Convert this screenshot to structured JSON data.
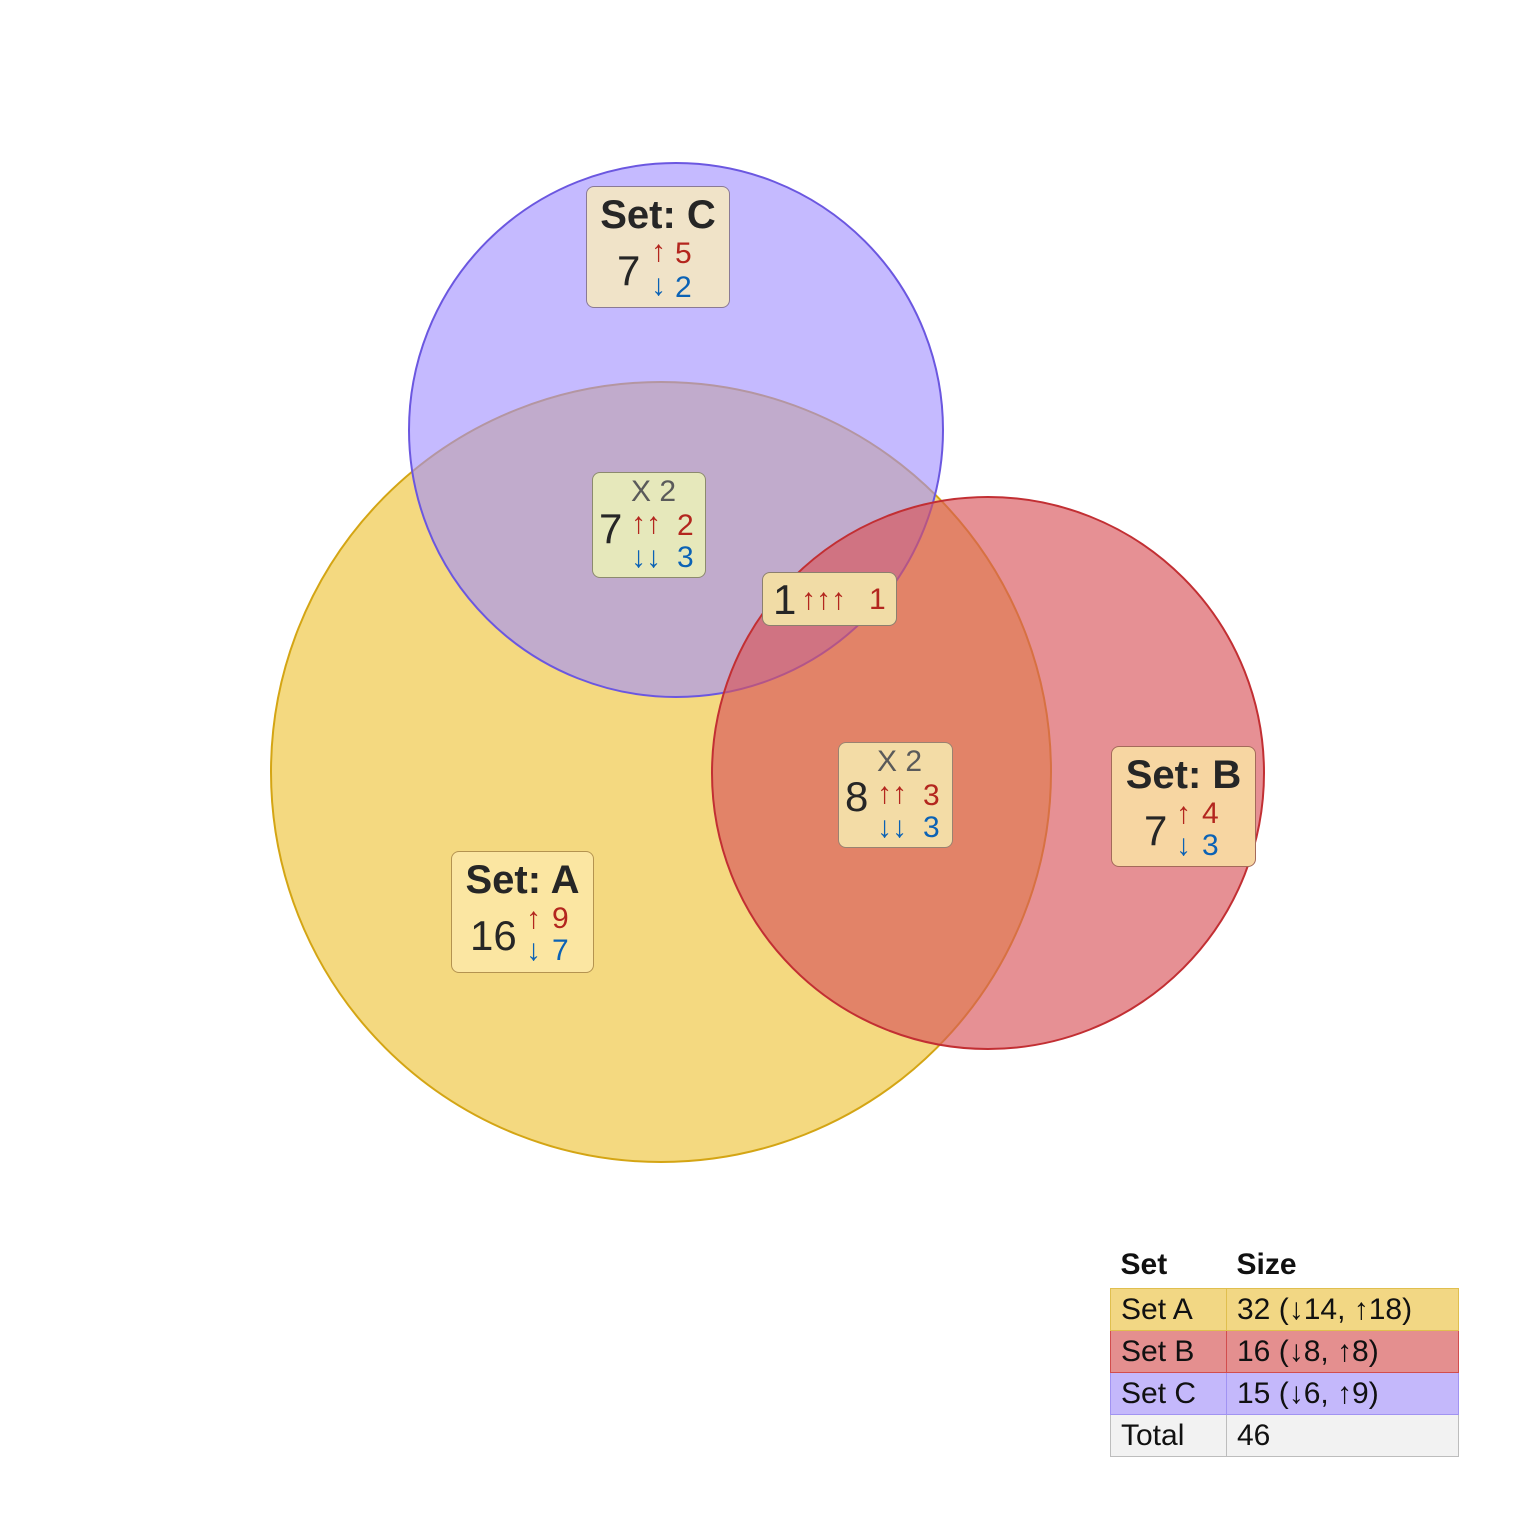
{
  "colors": {
    "set_a_fill": "#f0c94a",
    "set_a_stroke": "#d4a514",
    "set_b_fill": "#d9545a",
    "set_b_stroke": "#c22f33",
    "set_c_fill": "#9e8cff",
    "set_c_stroke": "#6b57e0",
    "up_arrow": "#b3261e",
    "down_arrow": "#0b62b5"
  },
  "sets": {
    "a": {
      "title": "Set: A",
      "total": "16",
      "up": "9",
      "down": "7"
    },
    "b": {
      "title": "Set: B",
      "total": "7",
      "up": "4",
      "down": "3"
    },
    "c": {
      "title": "Set: C",
      "total": "7",
      "up": "5",
      "down": "2"
    }
  },
  "intersections": {
    "ac": {
      "total": "7",
      "multiplier": "X 2",
      "up_arrows": "↑↑",
      "up": "2",
      "down_arrows": "↓↓",
      "down": "3"
    },
    "ab": {
      "total": "8",
      "multiplier": "X 2",
      "up_arrows": "↑↑",
      "up": "3",
      "down_arrows": "↓↓",
      "down": "3"
    },
    "abc": {
      "total": "1",
      "up_arrows": "↑↑↑",
      "up": "1"
    }
  },
  "arrows": {
    "up": "↑",
    "down": "↓"
  },
  "legend": {
    "header_set": "Set",
    "header_size": "Size",
    "rows": [
      {
        "set": "Set A",
        "size": "32 (↓14, ↑18)",
        "fill": "#f2d784",
        "stroke": "#e0bf4f"
      },
      {
        "set": "Set B",
        "size": "16 (↓8, ↑8)",
        "fill": "#e48f8f",
        "stroke": "#d24d4d"
      },
      {
        "set": "Set C",
        "size": "15 (↓6, ↑9)",
        "fill": "#c4b8fb",
        "stroke": "#a193f2"
      },
      {
        "set": "Total",
        "size": "46",
        "fill": "#f2f2f2",
        "stroke": "#bdbdbd"
      }
    ]
  }
}
